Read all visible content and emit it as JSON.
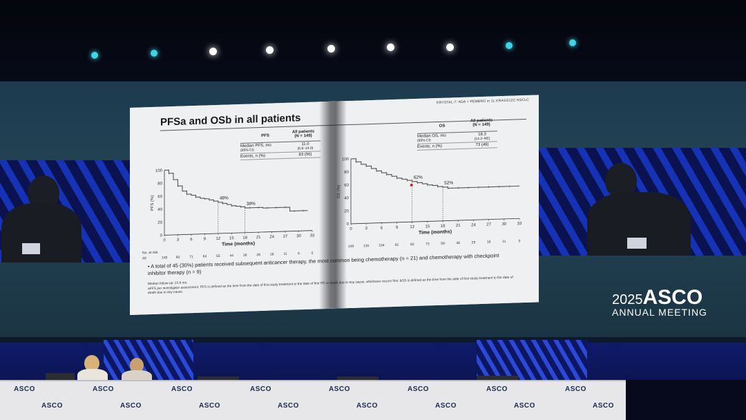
{
  "slide": {
    "trial_tag": "KRYSTAL-7: ADA + PEMBRO in 1L KRASG12C NSCLC",
    "title": "PFSa and OSb in all patients",
    "pfs_table": {
      "header": "PFS",
      "col_header": "All patients",
      "col_n": "(N = 149)",
      "row1_label": "Median PFS, mo",
      "row1_sub": "(95% CI)",
      "row1_value": "11.0",
      "row1_ci": "(5.8–14.0)",
      "row2_label": "Events, n (%)",
      "row2_value": "83 (56)"
    },
    "os_table": {
      "header": "OS",
      "col_header": "All patients",
      "col_n": "(N = 149)",
      "row1_label": "Median OS, mo",
      "row1_sub": "(95% CI)",
      "row1_value": "18.3",
      "row1_ci": "(14.3–NE)",
      "row2_label": "Events, n (%)",
      "row2_value": "73 (49)"
    },
    "pfs_axis_label": "PFS (%)",
    "os_axis_label": "OS (%)",
    "x_label": "Time (months)",
    "risk_label_1": "No. at risk",
    "risk_label_2": "All",
    "pfs_risk": [
      "149",
      "90",
      "71",
      "64",
      "55",
      "44",
      "36",
      "28",
      "18",
      "11",
      "6",
      "0"
    ],
    "os_risk": [
      "149",
      "116",
      "104",
      "91",
      "83",
      "73",
      "58",
      "46",
      "29",
      "16",
      "11",
      "0"
    ],
    "pfs_landmark_12": "48%",
    "pfs_landmark_18": "38%",
    "os_landmark_12": "62%",
    "os_landmark_18": "52%",
    "bullet": "A total of 45 (30%) patients received subsequent anticancer therapy, the most common being chemotherapy (n = 21) and chemotherapy with checkpoint inhibitor therapy (n = 9)",
    "followup": "Median follow-up: 22.8 mo.",
    "footnote": "aPFS per investigator assessment. PFS is defined as the time from the date of first study treatment to the date of first PD or death due to any cause, whichever occurs first. bOS is defined as the time from the date of first study treatment to the date of death due to any cause."
  },
  "event_logo": {
    "year": "2025",
    "name": "ASCO",
    "subtitle": "ANNUAL MEETING"
  },
  "desk_logo": "ASCO",
  "chart_data": [
    {
      "type": "line",
      "title": "",
      "xlabel": "Time (months)",
      "ylabel": "PFS (%)",
      "xlim": [
        0,
        33
      ],
      "ylim": [
        0,
        100
      ],
      "x_ticks": [
        0,
        3,
        6,
        9,
        12,
        15,
        18,
        21,
        24,
        27,
        30,
        33
      ],
      "y_ticks": [
        0,
        20,
        40,
        60,
        80,
        100
      ],
      "series": [
        {
          "name": "",
          "x": [
            0,
            1,
            2,
            3,
            4,
            5,
            6,
            7,
            8,
            9,
            10,
            11,
            12,
            13,
            14,
            15,
            16,
            17,
            18,
            19,
            20,
            21,
            22,
            23,
            24,
            25,
            26,
            27,
            28,
            29,
            30,
            31
          ],
          "y": [
            100,
            95,
            85,
            75,
            67,
            62,
            60,
            57,
            55,
            54,
            52,
            50,
            48,
            46,
            44,
            42,
            41,
            40,
            38,
            38,
            38,
            38,
            37,
            37,
            37,
            37,
            37,
            37,
            31,
            31,
            31,
            31
          ]
        }
      ],
      "annotations": [
        {
          "x": 12,
          "y": 48,
          "text": "48%"
        },
        {
          "x": 18,
          "y": 38,
          "text": "38%"
        }
      ]
    },
    {
      "type": "line",
      "title": "",
      "xlabel": "Time (months)",
      "ylabel": "OS (%)",
      "xlim": [
        0,
        33
      ],
      "ylim": [
        0,
        100
      ],
      "x_ticks": [
        0,
        3,
        6,
        9,
        12,
        15,
        18,
        21,
        24,
        27,
        30,
        33
      ],
      "y_ticks": [
        0,
        20,
        40,
        60,
        80,
        100
      ],
      "series": [
        {
          "name": "",
          "x": [
            0,
            1,
            2,
            3,
            4,
            5,
            6,
            7,
            8,
            9,
            10,
            11,
            12,
            13,
            14,
            15,
            16,
            17,
            18,
            19,
            20,
            21,
            22,
            23,
            24,
            25,
            26,
            27,
            28,
            29,
            30,
            31,
            32
          ],
          "y": [
            100,
            95,
            91,
            88,
            84,
            80,
            77,
            74,
            71,
            68,
            66,
            64,
            62,
            60,
            58,
            56,
            55,
            53,
            52,
            50,
            50,
            50,
            50,
            50,
            50,
            50,
            50,
            50,
            50,
            50,
            50,
            50,
            50
          ]
        }
      ],
      "annotations": [
        {
          "x": 12,
          "y": 62,
          "text": "62%"
        },
        {
          "x": 18,
          "y": 52,
          "text": "52%"
        }
      ]
    }
  ]
}
